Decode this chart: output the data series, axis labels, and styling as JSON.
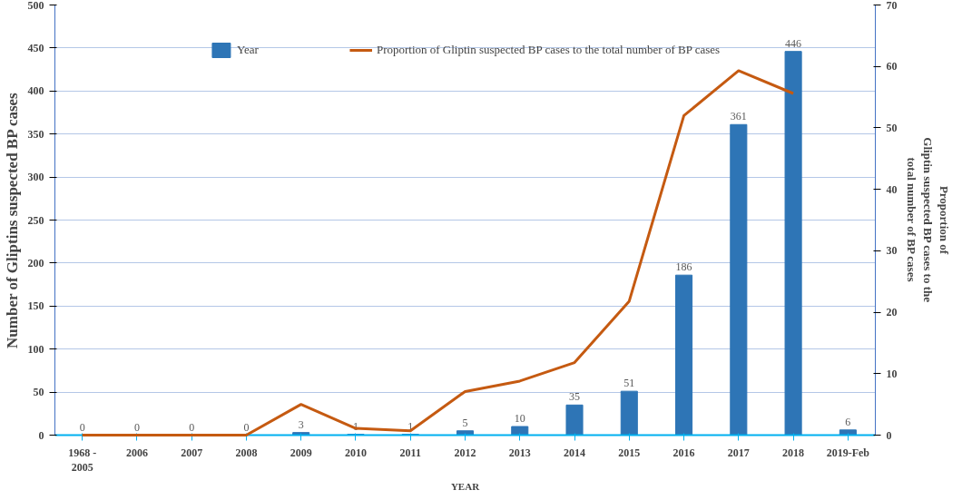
{
  "chart_data": {
    "type": "bar",
    "categories": [
      "1968 -\n2005",
      "2006",
      "2007",
      "2008",
      "2009",
      "2010",
      "2011",
      "2012",
      "2013",
      "2014",
      "2015",
      "2016",
      "2017",
      "2018",
      "2019-Feb"
    ],
    "xlabel": "YEAR",
    "ylabel": "Number of Gliptins suspected BP cases",
    "y2label": "Proportion of\nGliptin suspected BP cases to the\ntotal number of BP cases",
    "series": [
      {
        "name": "Year",
        "color": "#2e75b6",
        "values": [
          0,
          0,
          0,
          0,
          3,
          1,
          1,
          5,
          10,
          35,
          51,
          186,
          361,
          446,
          6
        ],
        "value_labels": [
          "0",
          "0",
          "0",
          "0",
          "3",
          "1",
          "1",
          "5",
          "10",
          "35",
          "51",
          "186",
          "361",
          "446",
          "6"
        ]
      },
      {
        "name": "Proportion of Gliptin suspected BP cases to the total number of BP cases",
        "type": "line",
        "axis": "y2",
        "color": "#c55a11",
        "values": [
          0,
          0,
          0,
          0,
          5.0,
          1.1,
          0.7,
          7.1,
          8.8,
          11.8,
          21.8,
          52,
          59.3,
          55.6,
          null
        ]
      }
    ],
    "ylim": [
      0,
      500
    ],
    "yticks": [
      0,
      50,
      100,
      150,
      200,
      250,
      300,
      350,
      400,
      450,
      500
    ],
    "y2lim": [
      0,
      70
    ],
    "y2ticks": [
      0,
      10,
      20,
      30,
      40,
      50,
      60,
      70
    ],
    "grid": "y",
    "legend": "top",
    "marker": "none",
    "line_style": "solid"
  }
}
